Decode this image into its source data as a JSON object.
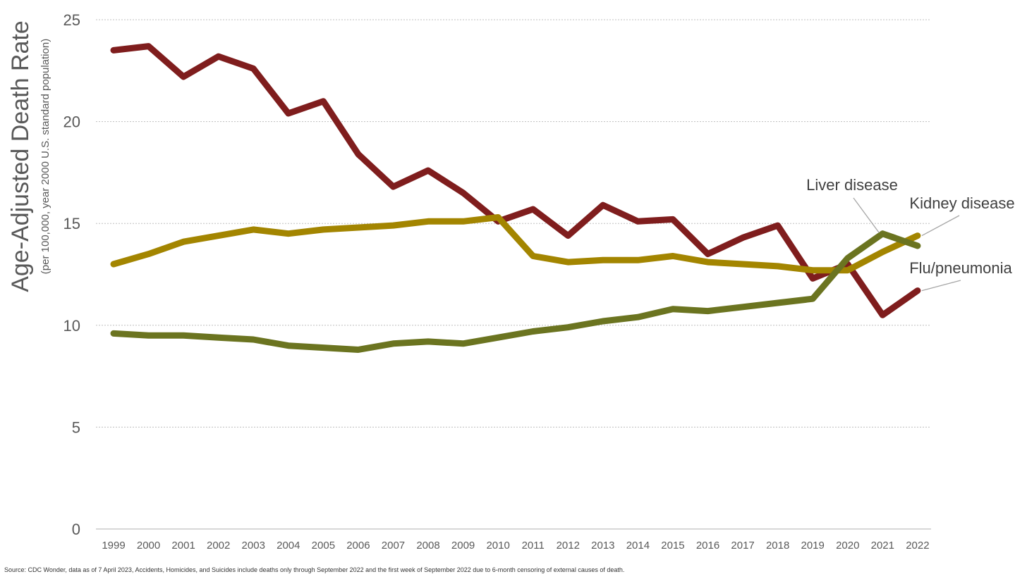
{
  "chart_data": {
    "type": "line",
    "title": "",
    "ylabel": "Age-Adjusted Death Rate",
    "ylabel_sub": "(per 100,000, year 2000 U.S. standard population)",
    "xlabel": "",
    "ylim": [
      0,
      25
    ],
    "yticks": [
      0,
      5,
      10,
      15,
      20,
      25
    ],
    "grid": "horizontal dotted",
    "legend": "direct labels at line ends",
    "categories": [
      "1999",
      "2000",
      "2001",
      "2002",
      "2003",
      "2004",
      "2005",
      "2006",
      "2007",
      "2008",
      "2009",
      "2010",
      "2011",
      "2012",
      "2013",
      "2014",
      "2015",
      "2016",
      "2017",
      "2018",
      "2019",
      "2020",
      "2021",
      "2022"
    ],
    "series": [
      {
        "name": "Flu/pneumonia",
        "color": "#7f1d1d",
        "values": [
          23.5,
          23.7,
          22.2,
          23.2,
          22.6,
          20.4,
          21.0,
          18.4,
          16.8,
          17.6,
          16.5,
          15.1,
          15.7,
          14.4,
          15.9,
          15.1,
          15.2,
          13.5,
          14.3,
          14.9,
          12.3,
          13.0,
          10.5,
          11.7
        ]
      },
      {
        "name": "Kidney disease",
        "color": "#a38500",
        "values": [
          13.0,
          13.5,
          14.1,
          14.4,
          14.7,
          14.5,
          14.7,
          14.8,
          14.9,
          15.1,
          15.1,
          15.3,
          13.4,
          13.1,
          13.2,
          13.2,
          13.4,
          13.1,
          13.0,
          12.9,
          12.7,
          12.7,
          13.6,
          14.4
        ]
      },
      {
        "name": "Liver disease",
        "color": "#6b7420",
        "values": [
          9.6,
          9.5,
          9.5,
          9.4,
          9.3,
          9.0,
          8.9,
          8.8,
          9.1,
          9.2,
          9.1,
          9.4,
          9.7,
          9.9,
          10.2,
          10.4,
          10.8,
          10.7,
          10.9,
          11.1,
          11.3,
          13.3,
          14.5,
          13.9
        ]
      }
    ]
  },
  "source_note": "Source: CDC Wonder, data as of 7 April 2023, Accidents, Homicides, and Suicides include deaths only through September 2022 and the first week of September 2022 due to 6-month censoring of external causes of death."
}
